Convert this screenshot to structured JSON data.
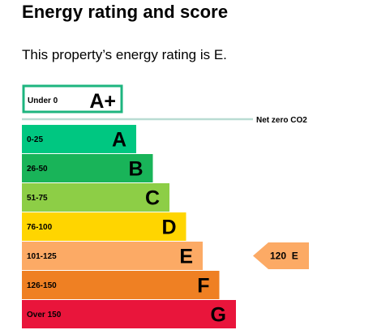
{
  "page": {
    "title": "Energy rating and score",
    "summary": "This property’s energy rating is E."
  },
  "chart_data": {
    "type": "bar",
    "title": "",
    "xlabel": "",
    "ylabel": "",
    "net_zero": {
      "band": "Under 0",
      "letter": "A+",
      "label": "Net zero CO2",
      "color": "#1db57f"
    },
    "categories": [
      "0-25",
      "26-50",
      "51-75",
      "76-100",
      "101-125",
      "126-150",
      "Over 150"
    ],
    "letters": [
      "A",
      "B",
      "C",
      "D",
      "E",
      "F",
      "G"
    ],
    "colors": [
      "#00c781",
      "#19b459",
      "#8dce46",
      "#ffd500",
      "#fcaa65",
      "#ef8023",
      "#e9153b"
    ],
    "current_rating": {
      "score": 120,
      "letter": "E",
      "label": "120  E",
      "color": "#fcaa65"
    }
  }
}
